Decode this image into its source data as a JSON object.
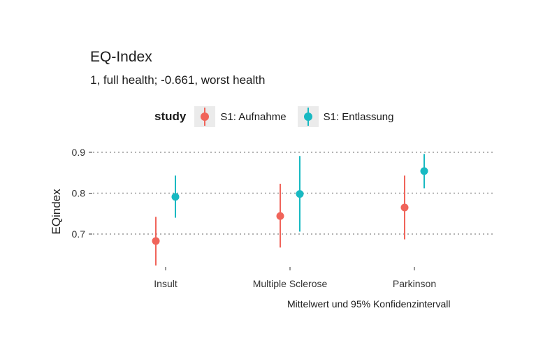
{
  "title": "EQ-Index",
  "subtitle": "1, full health; -0.661, worst health",
  "caption": "Mittelwert und 95% Konfidenzintervall",
  "legend": {
    "title": "study",
    "items": [
      {
        "label": "S1: Aufnahme",
        "color": "#f0645a"
      },
      {
        "label": "S1: Entlassung",
        "color": "#18b9c2"
      }
    ]
  },
  "chart_data": {
    "type": "scatter",
    "title": "EQ-Index",
    "subtitle": "1, full health; -0.661, worst health",
    "xlabel": "",
    "ylabel": "EQindex",
    "categories": [
      "Insult",
      "Multiple Sclerose",
      "Parkinson"
    ],
    "y_ticks": [
      "0.7",
      "0.8",
      "0.9"
    ],
    "ylim": [
      0.6,
      0.9
    ],
    "grid": "horizontal dotted",
    "legend_position": "top",
    "series": [
      {
        "name": "S1: Aufnahme",
        "color": "#f0645a",
        "mean": [
          0.683,
          0.744,
          0.765
        ],
        "lower": [
          0.623,
          0.667,
          0.687
        ],
        "upper": [
          0.742,
          0.823,
          0.843
        ]
      },
      {
        "name": "S1: Entlassung",
        "color": "#18b9c2",
        "mean": [
          0.791,
          0.798,
          0.854
        ],
        "lower": [
          0.74,
          0.706,
          0.812
        ],
        "upper": [
          0.843,
          0.891,
          0.896
        ]
      }
    ]
  }
}
